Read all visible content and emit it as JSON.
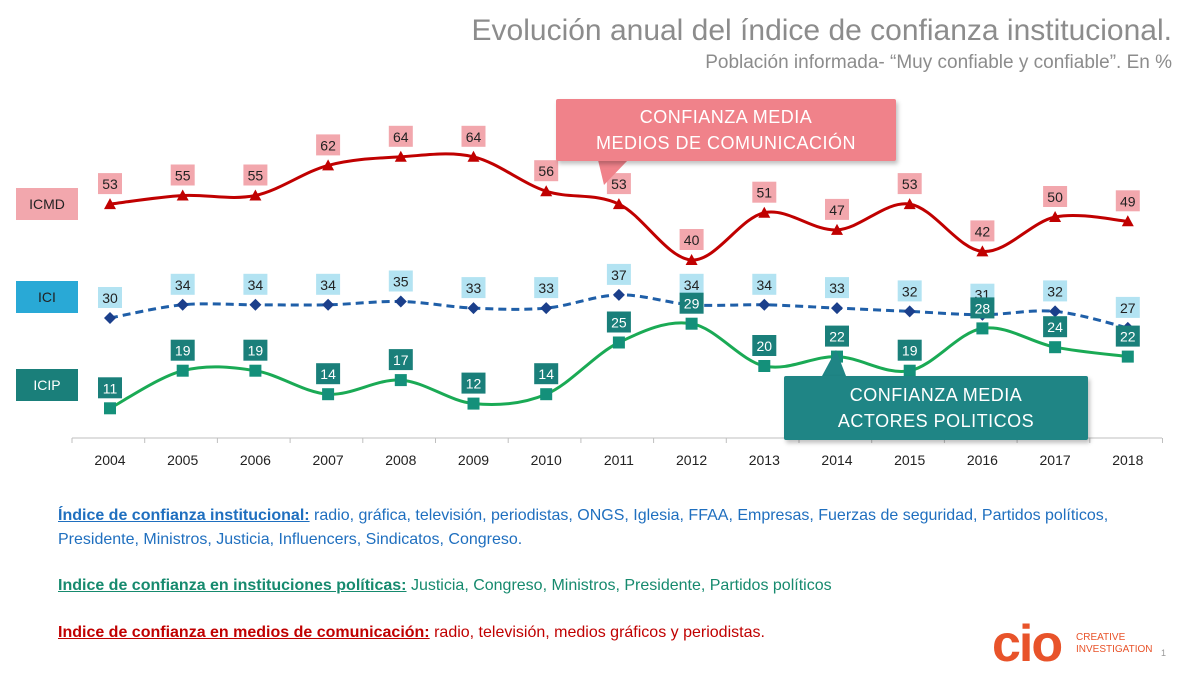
{
  "header": {
    "title": "Evolución anual del índice de confianza institucional.",
    "subtitle": "Población informada- “Muy confiable y confiable”. En %"
  },
  "callouts": {
    "medios_line1": "CONFIANZA MEDIA",
    "medios_line2": "MEDIOS DE COMUNICACIÓN",
    "actores_line1": "CONFIANZA MEDIA",
    "actores_line2": "ACTORES POLITICOS"
  },
  "notes": {
    "ici_label": "Índice de confianza institucional:",
    "ici_text": " radio, gráfica, televisión, periodistas, ONGS, Iglesia, FFAA, Empresas, Fuerzas de seguridad, Partidos políticos, Presidente, Ministros, Justicia, Influencers, Sindicatos, Congreso.",
    "icip_label": "Indice de confianza  en instituciones políticas:",
    "icip_text": " Justicia, Congreso, Ministros, Presidente, Partidos políticos",
    "icmd_label": "Indice de confianza en medios de comunicación:",
    "icmd_text": " radio, televisión, medios gráficos y periodistas."
  },
  "logo": {
    "mark": "cio",
    "line1": "CREATIVE",
    "line2": "INVESTIGATION"
  },
  "page_number": "1",
  "chart_data": {
    "type": "line",
    "categories": [
      "2004",
      "2005",
      "2006",
      "2007",
      "2008",
      "2009",
      "2010",
      "2011",
      "2012",
      "2013",
      "2014",
      "2015",
      "2016",
      "2017",
      "2018"
    ],
    "series": [
      {
        "name": "ICMD",
        "color": "#c00000",
        "label_bg": "#f2a7ad",
        "marker": "triangle",
        "line_style": "solid",
        "values": [
          53,
          55,
          55,
          62,
          64,
          64,
          56,
          53,
          40,
          51,
          47,
          53,
          42,
          50,
          49
        ]
      },
      {
        "name": "ICI",
        "color": "#1f5fa8",
        "label_bg": "#b3e3f2",
        "marker": "diamond",
        "line_style": "dashed",
        "values": [
          30,
          34,
          34,
          34,
          35,
          33,
          33,
          37,
          34,
          34,
          33,
          32,
          31,
          32,
          27
        ]
      },
      {
        "name": "ICIP",
        "color": "#1aaa55",
        "label_bg": "#1a7f7a",
        "marker": "square",
        "line_style": "solid",
        "values": [
          11,
          19,
          19,
          14,
          17,
          12,
          14,
          25,
          29,
          20,
          22,
          19,
          28,
          24,
          22
        ]
      }
    ],
    "series_tags": [
      {
        "name": "ICMD",
        "bg": "#f2a7ad"
      },
      {
        "name": "ICI",
        "bg": "#29a9d6"
      },
      {
        "name": "ICIP",
        "bg": "#1a7f7a"
      }
    ],
    "grid": false,
    "legend": "left tags"
  }
}
